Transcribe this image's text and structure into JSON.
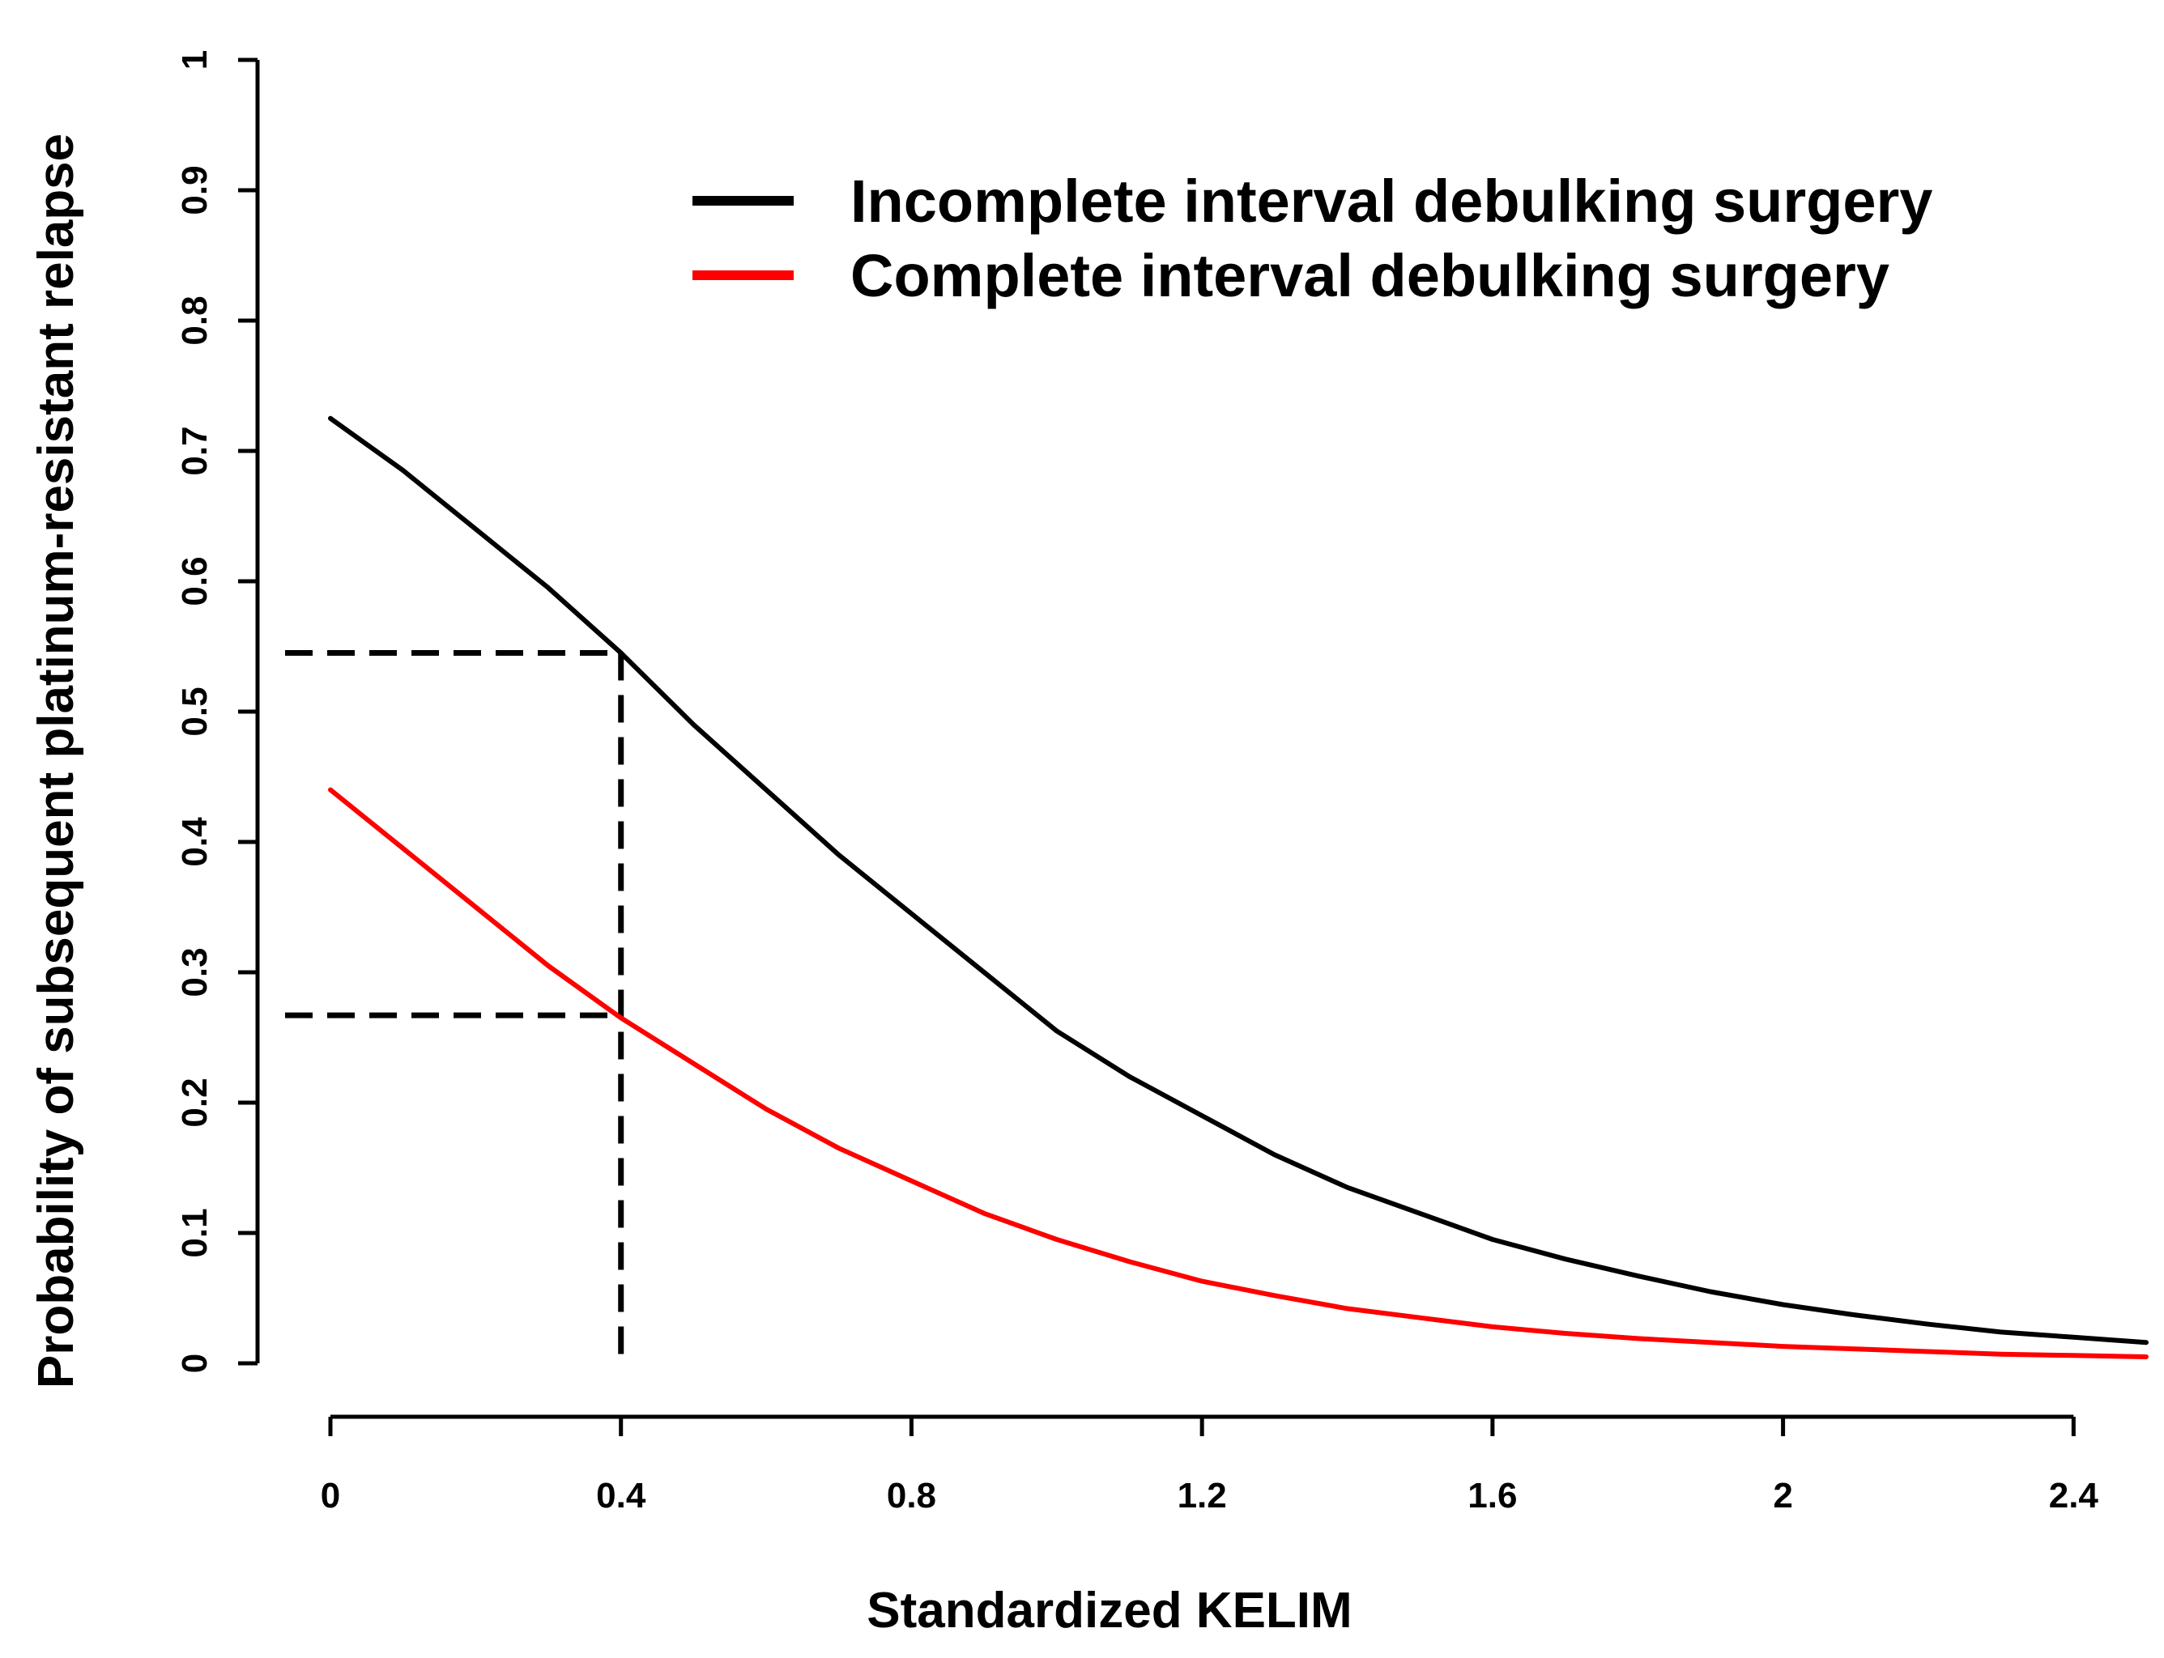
{
  "chart_data": {
    "type": "line",
    "title": "",
    "xlabel": "Standardized KELIM",
    "ylabel": "Probability of subsequent platinum-resistant relapse",
    "xlim": [
      0,
      2.5
    ],
    "ylim": [
      0,
      1
    ],
    "x_ticks": [
      0,
      0.4,
      0.8,
      1.2,
      1.6,
      2.0,
      2.4
    ],
    "x_tick_labels": [
      "0",
      "0.4",
      "0.8",
      "1.2",
      "1.6",
      "2",
      "2.4"
    ],
    "y_ticks": [
      0,
      0.1,
      0.2,
      0.3,
      0.4,
      0.5,
      0.6,
      0.7,
      0.8,
      0.9,
      1.0
    ],
    "y_tick_labels": [
      "0",
      "0.1",
      "0.2",
      "0.3",
      "0.4",
      "0.5",
      "0.6",
      "0.7",
      "0.8",
      "0.9",
      "1"
    ],
    "grid": false,
    "legend_position": "top-right",
    "series": [
      {
        "name": "Incomplete interval debulking surgery",
        "color": "#000000",
        "x": [
          0,
          0.1,
          0.2,
          0.3,
          0.4,
          0.5,
          0.6,
          0.7,
          0.8,
          0.9,
          1.0,
          1.1,
          1.2,
          1.3,
          1.4,
          1.5,
          1.6,
          1.7,
          1.8,
          1.9,
          2.0,
          2.1,
          2.2,
          2.3,
          2.4,
          2.5
        ],
        "y": [
          0.725,
          0.685,
          0.64,
          0.595,
          0.545,
          0.49,
          0.44,
          0.39,
          0.345,
          0.3,
          0.255,
          0.22,
          0.19,
          0.16,
          0.135,
          0.115,
          0.095,
          0.08,
          0.067,
          0.055,
          0.045,
          0.037,
          0.03,
          0.024,
          0.02,
          0.016
        ]
      },
      {
        "name": "Complete interval debulking surgery",
        "color": "#ff0000",
        "x": [
          0,
          0.1,
          0.2,
          0.3,
          0.4,
          0.5,
          0.6,
          0.7,
          0.8,
          0.9,
          1.0,
          1.1,
          1.2,
          1.3,
          1.4,
          1.5,
          1.6,
          1.7,
          1.8,
          1.9,
          2.0,
          2.1,
          2.2,
          2.3,
          2.4,
          2.5
        ],
        "y": [
          0.44,
          0.395,
          0.35,
          0.305,
          0.265,
          0.23,
          0.195,
          0.165,
          0.14,
          0.115,
          0.095,
          0.078,
          0.063,
          0.052,
          0.042,
          0.035,
          0.028,
          0.023,
          0.019,
          0.016,
          0.013,
          0.011,
          0.009,
          0.007,
          0.006,
          0.005
        ]
      }
    ],
    "annotations": [
      {
        "type": "dashed-reference",
        "color": "#000000",
        "vertical_at_x": 0.4,
        "horizontal_at_y": [
          0.545,
          0.267
        ]
      }
    ]
  }
}
